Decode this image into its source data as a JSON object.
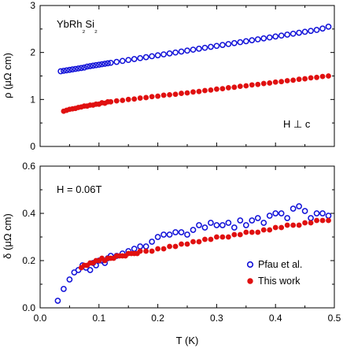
{
  "chart_data": [
    {
      "type": "scatter",
      "panel": "top",
      "title": "",
      "annotations": {
        "material": "YbRh₂Si₂",
        "field_direction": "H ⊥ c"
      },
      "xlabel": "",
      "ylabel": "ρ (μΩ cm)",
      "xlim": [
        0,
        0.5
      ],
      "ylim": [
        0,
        3
      ],
      "yticks": [
        "0",
        "1",
        "2",
        "3"
      ],
      "grid": false,
      "series": [
        {
          "marker": "open-circle",
          "color": "#1010d8",
          "x": [
            0.035,
            0.04,
            0.045,
            0.05,
            0.055,
            0.06,
            0.065,
            0.07,
            0.075,
            0.08,
            0.085,
            0.09,
            0.095,
            0.1,
            0.105,
            0.11,
            0.115,
            0.12,
            0.13,
            0.14,
            0.15,
            0.16,
            0.17,
            0.18,
            0.19,
            0.2,
            0.21,
            0.22,
            0.23,
            0.24,
            0.25,
            0.26,
            0.27,
            0.28,
            0.29,
            0.3,
            0.31,
            0.32,
            0.33,
            0.34,
            0.35,
            0.36,
            0.37,
            0.38,
            0.39,
            0.4,
            0.41,
            0.42,
            0.43,
            0.44,
            0.45,
            0.46,
            0.47,
            0.48,
            0.49
          ],
          "y": [
            1.6,
            1.61,
            1.62,
            1.63,
            1.64,
            1.65,
            1.66,
            1.67,
            1.68,
            1.7,
            1.71,
            1.72,
            1.73,
            1.74,
            1.75,
            1.76,
            1.77,
            1.78,
            1.8,
            1.82,
            1.84,
            1.86,
            1.88,
            1.9,
            1.92,
            1.94,
            1.96,
            1.98,
            2.0,
            2.02,
            2.04,
            2.06,
            2.08,
            2.1,
            2.12,
            2.14,
            2.16,
            2.18,
            2.2,
            2.22,
            2.24,
            2.26,
            2.28,
            2.3,
            2.32,
            2.34,
            2.36,
            2.38,
            2.4,
            2.42,
            2.44,
            2.46,
            2.48,
            2.51,
            2.55
          ]
        },
        {
          "marker": "filled-circle",
          "color": "#e01010",
          "x": [
            0.04,
            0.045,
            0.05,
            0.055,
            0.06,
            0.065,
            0.07,
            0.075,
            0.08,
            0.085,
            0.09,
            0.095,
            0.1,
            0.105,
            0.11,
            0.115,
            0.12,
            0.13,
            0.14,
            0.15,
            0.16,
            0.17,
            0.18,
            0.19,
            0.2,
            0.21,
            0.22,
            0.23,
            0.24,
            0.25,
            0.26,
            0.27,
            0.28,
            0.29,
            0.3,
            0.31,
            0.32,
            0.33,
            0.34,
            0.35,
            0.36,
            0.37,
            0.38,
            0.39,
            0.4,
            0.41,
            0.42,
            0.43,
            0.44,
            0.45,
            0.46,
            0.47,
            0.48,
            0.49
          ],
          "y": [
            0.75,
            0.77,
            0.79,
            0.8,
            0.81,
            0.83,
            0.84,
            0.86,
            0.86,
            0.88,
            0.88,
            0.9,
            0.9,
            0.93,
            0.92,
            0.95,
            0.95,
            0.97,
            0.98,
            1.0,
            1.01,
            1.03,
            1.04,
            1.06,
            1.07,
            1.09,
            1.1,
            1.11,
            1.13,
            1.14,
            1.16,
            1.17,
            1.19,
            1.2,
            1.22,
            1.23,
            1.25,
            1.26,
            1.28,
            1.29,
            1.31,
            1.32,
            1.34,
            1.35,
            1.37,
            1.38,
            1.4,
            1.41,
            1.43,
            1.44,
            1.46,
            1.47,
            1.49,
            1.5
          ]
        }
      ]
    },
    {
      "type": "scatter",
      "panel": "bottom",
      "title": "",
      "annotations": {
        "field": "H = 0.06T"
      },
      "xlabel": "T (K)",
      "ylabel": "δ (μΩ cm)",
      "xlim": [
        0,
        0.5
      ],
      "ylim": [
        0,
        0.6
      ],
      "xticks": [
        "0.0",
        "0.1",
        "0.2",
        "0.3",
        "0.4",
        "0.5"
      ],
      "yticks": [
        "0.0",
        "0.2",
        "0.4",
        "0.6"
      ],
      "grid": false,
      "legend": {
        "placement": "bottom-right",
        "entries": [
          "Pfau et al.",
          "This work"
        ]
      },
      "series": [
        {
          "name": "Pfau et al.",
          "marker": "open-circle",
          "color": "#1010d8",
          "x": [
            0.03,
            0.04,
            0.05,
            0.058,
            0.065,
            0.072,
            0.078,
            0.085,
            0.09,
            0.095,
            0.1,
            0.105,
            0.11,
            0.115,
            0.12,
            0.13,
            0.14,
            0.15,
            0.16,
            0.17,
            0.18,
            0.19,
            0.2,
            0.21,
            0.22,
            0.23,
            0.24,
            0.25,
            0.26,
            0.27,
            0.28,
            0.29,
            0.3,
            0.31,
            0.32,
            0.33,
            0.34,
            0.35,
            0.36,
            0.37,
            0.38,
            0.39,
            0.4,
            0.41,
            0.42,
            0.43,
            0.44,
            0.45,
            0.46,
            0.47,
            0.48,
            0.49
          ],
          "y": [
            0.03,
            0.08,
            0.12,
            0.15,
            0.16,
            0.18,
            0.17,
            0.16,
            0.19,
            0.18,
            0.2,
            0.2,
            0.19,
            0.21,
            0.22,
            0.22,
            0.23,
            0.24,
            0.25,
            0.26,
            0.26,
            0.28,
            0.3,
            0.31,
            0.31,
            0.32,
            0.32,
            0.31,
            0.33,
            0.35,
            0.34,
            0.36,
            0.35,
            0.35,
            0.36,
            0.34,
            0.37,
            0.35,
            0.37,
            0.38,
            0.36,
            0.39,
            0.4,
            0.4,
            0.38,
            0.42,
            0.43,
            0.41,
            0.38,
            0.4,
            0.4,
            0.39
          ]
        },
        {
          "name": "This work",
          "marker": "filled-circle",
          "color": "#e01010",
          "x": [
            0.07,
            0.075,
            0.08,
            0.085,
            0.09,
            0.095,
            0.1,
            0.105,
            0.11,
            0.115,
            0.12,
            0.125,
            0.13,
            0.135,
            0.14,
            0.145,
            0.15,
            0.155,
            0.16,
            0.165,
            0.17,
            0.18,
            0.19,
            0.2,
            0.21,
            0.22,
            0.23,
            0.24,
            0.25,
            0.26,
            0.27,
            0.28,
            0.29,
            0.3,
            0.31,
            0.32,
            0.33,
            0.34,
            0.35,
            0.36,
            0.37,
            0.38,
            0.39,
            0.4,
            0.41,
            0.42,
            0.43,
            0.44,
            0.45,
            0.46,
            0.47,
            0.48,
            0.49
          ],
          "y": [
            0.17,
            0.18,
            0.18,
            0.19,
            0.19,
            0.2,
            0.2,
            0.21,
            0.2,
            0.21,
            0.21,
            0.21,
            0.22,
            0.22,
            0.22,
            0.22,
            0.23,
            0.23,
            0.23,
            0.23,
            0.24,
            0.24,
            0.24,
            0.25,
            0.25,
            0.26,
            0.26,
            0.27,
            0.27,
            0.28,
            0.28,
            0.29,
            0.29,
            0.3,
            0.3,
            0.3,
            0.31,
            0.31,
            0.32,
            0.32,
            0.32,
            0.33,
            0.33,
            0.34,
            0.34,
            0.35,
            0.35,
            0.35,
            0.36,
            0.36,
            0.37,
            0.37,
            0.37
          ]
        }
      ]
    }
  ]
}
